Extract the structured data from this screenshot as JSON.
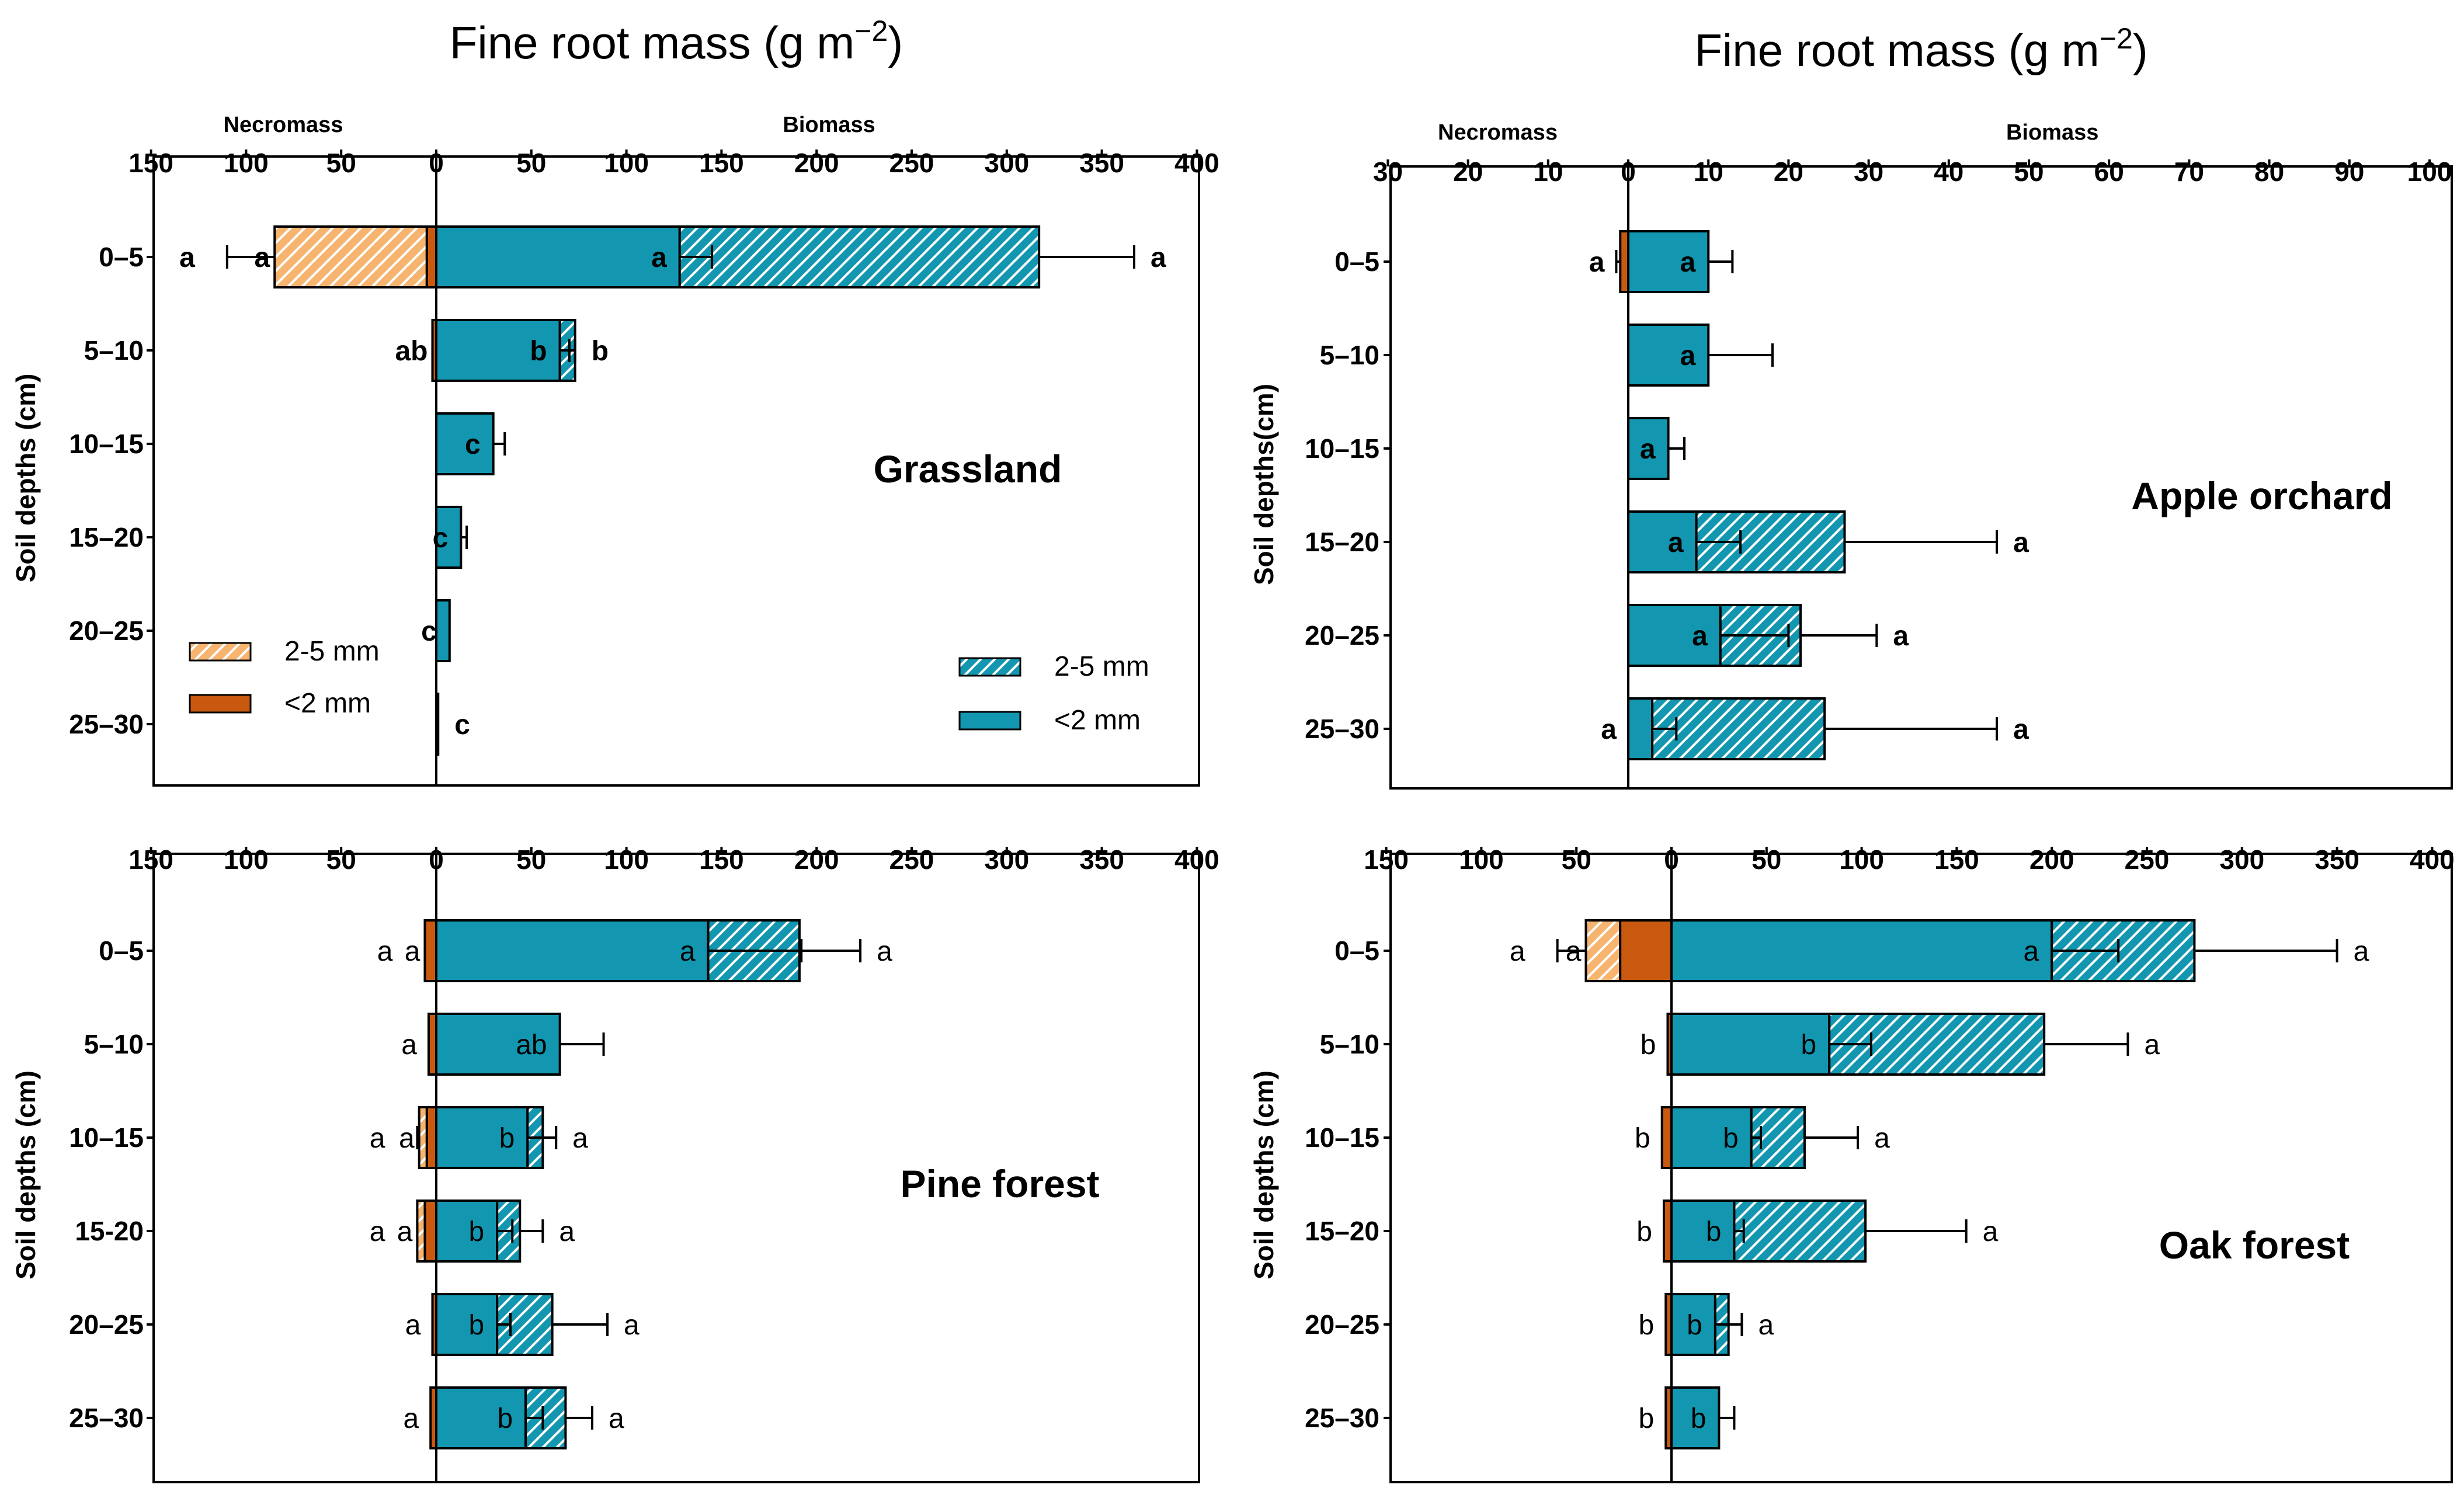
{
  "chart_data": [
    {
      "type": "bar",
      "title": "Fine root mass (g m−2)",
      "title_main": "Fine root mass (g m",
      "title_sup": "−2",
      "title_close": ")",
      "panel_label": "Grassland",
      "ylabel": "Soil depths (cm)",
      "necromass_label": "Necromass",
      "biomass_label": "Biomass",
      "x_ticks": [
        "150",
        "100",
        "50",
        "0",
        "50",
        "100",
        "150",
        "200",
        "250",
        "300",
        "350",
        "400"
      ],
      "xlim": [
        -150,
        400
      ],
      "categories": [
        "0–5",
        "5–10",
        "10–15",
        "15–20",
        "20–25",
        "25–30"
      ],
      "series": [
        {
          "name": "Necromass <2 mm",
          "values": [
            5,
            2,
            0,
            0,
            0,
            0
          ]
        },
        {
          "name": "Necromass 2-5 mm",
          "values": [
            80,
            0,
            0,
            0,
            0,
            0
          ]
        },
        {
          "name": "Biomass <2 mm",
          "values": [
            128,
            65,
            30,
            13,
            7,
            1
          ]
        },
        {
          "name": "Biomass 2-5 mm",
          "values": [
            189,
            8,
            0,
            0,
            0,
            0
          ]
        }
      ],
      "error_bars": {
        "Necromass total": [
          110,
          0,
          0,
          0,
          0,
          0
        ],
        "Biomass <2 mm": [
          145,
          73,
          36,
          16,
          0,
          0
        ],
        "Biomass total": [
          367,
          70,
          0,
          0,
          0,
          0
        ]
      },
      "letters": {
        "necro_outer": [
          "a",
          "",
          "",
          "",
          "",
          ""
        ],
        "necro_inner": [
          "a",
          "ab",
          "",
          "",
          "",
          ""
        ],
        "bio_inner": [
          "a",
          "b",
          "c",
          "c",
          "c",
          ""
        ],
        "bio_outer": [
          "a",
          "b",
          "",
          "",
          "",
          "c"
        ]
      },
      "legend_necromass": [
        "2-5 mm",
        "<2 mm"
      ],
      "legend_biomass": [
        "2-5 mm",
        "<2 mm"
      ],
      "letter_style": "bold"
    },
    {
      "type": "bar",
      "title": "Fine root mass (g m−2)",
      "title_main": "Fine root mass (g m",
      "title_sup": "−2",
      "title_close": ")",
      "panel_label": "Apple orchard",
      "ylabel": "Soil depths(cm)",
      "necromass_label": "Necromass",
      "biomass_label": "Biomass",
      "x_ticks": [
        "30",
        "20",
        "10",
        "0",
        "10",
        "20",
        "30",
        "40",
        "50",
        "60",
        "70",
        "80",
        "90",
        "100"
      ],
      "xlim": [
        -30,
        100
      ],
      "categories": [
        "0–5",
        "5–10",
        "10–15",
        "15–20",
        "20–25",
        "25–30"
      ],
      "series": [
        {
          "name": "Necromass <2 mm",
          "values": [
            1,
            0,
            0,
            0,
            0,
            0
          ]
        },
        {
          "name": "Necromass 2-5 mm",
          "values": [
            0,
            0,
            0,
            0,
            0,
            0
          ]
        },
        {
          "name": "Biomass <2 mm",
          "values": [
            10,
            10,
            5,
            8.5,
            11.5,
            3
          ]
        },
        {
          "name": "Biomass 2-5 mm",
          "values": [
            0,
            0,
            0,
            18.5,
            10,
            21.5
          ]
        }
      ],
      "error_bars": {
        "Necromass total": [
          1.5,
          0,
          0,
          0,
          0,
          0
        ],
        "Biomass <2 mm": [
          13,
          18,
          7,
          14,
          20,
          6
        ],
        "Biomass total": [
          0,
          0,
          0,
          46,
          31,
          46
        ]
      },
      "letters": {
        "necro_outer": [
          "a",
          "",
          "",
          "",
          "",
          "a"
        ],
        "necro_inner": [
          "",
          "",
          "",
          "",
          "",
          ""
        ],
        "bio_inner": [
          "a",
          "a",
          "a",
          "a",
          "a",
          ""
        ],
        "bio_outer": [
          "",
          "",
          "",
          "a",
          "a",
          "a"
        ]
      },
      "letter_style": "bold"
    },
    {
      "type": "bar",
      "panel_label": "Pine forest",
      "ylabel": "Soil depths (cm)",
      "x_ticks": [
        "150",
        "100",
        "50",
        "0",
        "50",
        "100",
        "150",
        "200",
        "250",
        "300",
        "350",
        "400"
      ],
      "xlim": [
        -150,
        400
      ],
      "categories": [
        "0–5",
        "5–10",
        "10–15",
        "15-20",
        "20–25",
        "25–30"
      ],
      "series": [
        {
          "name": "Necromass <2 mm",
          "values": [
            6,
            4,
            5,
            6,
            2,
            3
          ]
        },
        {
          "name": "Necromass 2-5 mm",
          "values": [
            0,
            0,
            4,
            4,
            0,
            0
          ]
        },
        {
          "name": "Biomass <2 mm",
          "values": [
            143,
            65,
            48,
            32,
            32,
            47
          ]
        },
        {
          "name": "Biomass 2-5 mm",
          "values": [
            48,
            0,
            8,
            12,
            29,
            21
          ]
        }
      ],
      "error_bars": {
        "Necromass total": [
          0,
          0,
          10,
          10,
          0,
          0
        ],
        "Biomass <2 mm": [
          192,
          0,
          63,
          40,
          39,
          56
        ],
        "Biomass total": [
          223,
          88,
          63,
          56,
          90,
          82
        ]
      },
      "letters": {
        "necro_outer": [
          "a",
          "a",
          "a",
          "a",
          "a",
          "a"
        ],
        "necro_inner": [
          "a",
          "",
          "a",
          "a",
          "",
          ""
        ],
        "bio_inner": [
          "a",
          "ab",
          "b",
          "b",
          "b",
          "b"
        ],
        "bio_outer": [
          "a",
          "",
          "a",
          "a",
          "a",
          "a"
        ]
      },
      "letter_style": "normal"
    },
    {
      "type": "bar",
      "panel_label": "Oak forest",
      "ylabel": "Soil depths (cm)",
      "x_ticks": [
        "150",
        "100",
        "50",
        "0",
        "50",
        "100",
        "150",
        "200",
        "250",
        "300",
        "350",
        "400"
      ],
      "xlim": [
        -150,
        400
      ],
      "categories": [
        "0–5",
        "5–10",
        "10–15",
        "15–20",
        "20–25",
        "25–30"
      ],
      "series": [
        {
          "name": "Necromass <2 mm",
          "values": [
            27,
            2,
            5,
            4,
            3,
            3
          ]
        },
        {
          "name": "Necromass 2-5 mm",
          "values": [
            18,
            0,
            0,
            0,
            0,
            0
          ]
        },
        {
          "name": "Biomass <2 mm",
          "values": [
            200,
            83,
            42,
            33,
            23,
            25
          ]
        },
        {
          "name": "Biomass 2-5 mm",
          "values": [
            75,
            113,
            28,
            69,
            7,
            0
          ]
        }
      ],
      "error_bars": {
        "Necromass total": [
          60,
          0,
          0,
          0,
          0,
          0
        ],
        "Biomass <2 mm": [
          235,
          105,
          47,
          38,
          37,
          33
        ],
        "Biomass total": [
          350,
          240,
          98,
          155,
          37,
          0
        ]
      },
      "letters": {
        "necro_outer": [
          "a",
          "b",
          "b",
          "b",
          "b",
          "b"
        ],
        "necro_inner": [
          "a",
          "",
          "",
          "",
          "",
          ""
        ],
        "bio_inner": [
          "a",
          "b",
          "b",
          "b",
          "b",
          "b"
        ],
        "bio_outer": [
          "a",
          "a",
          "a",
          "a",
          "a",
          ""
        ]
      },
      "letter_style": "normal"
    }
  ],
  "colors": {
    "bio": "#1396b0",
    "necro": "#c8590e",
    "necro_hatch_bg": "#f6b46e",
    "hatch_line": "#ffffff",
    "stroke": "#000000"
  }
}
